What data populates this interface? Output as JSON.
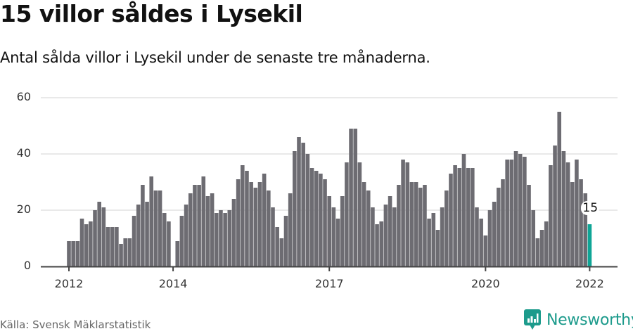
{
  "header": {
    "title": "15 villor såldes i Lysekil",
    "subtitle": "Antal sålda villor i Lysekil under de senaste tre månaderna."
  },
  "footer": {
    "source": "Källa: Svensk Mäklarstatistik",
    "brand": "Newsworthy",
    "brand_icon": "bar-chart-speech-bubble-icon"
  },
  "colors": {
    "bar": "#6d6c72",
    "highlight": "#0fa596",
    "grid": "#e2e2e2",
    "axis": "#444444",
    "brand": "#1d9b8c"
  },
  "chart_data": {
    "type": "bar",
    "title": "15 villor såldes i Lysekil",
    "subtitle": "Antal sålda villor i Lysekil under de senaste tre månaderna.",
    "xlabel": "",
    "ylabel": "",
    "ylim": [
      0,
      60
    ],
    "yticks": [
      0,
      20,
      40,
      60
    ],
    "xtick_labels": [
      "2012",
      "2014",
      "2017",
      "2020",
      "2022"
    ],
    "grid": true,
    "legend": "none",
    "start": "2012-01",
    "end": "2022-01",
    "frequency": "monthly",
    "highlight_last": true,
    "annotation": {
      "label": "15",
      "x": "2022-01"
    },
    "categories": [
      "2012-01",
      "2012-02",
      "2012-03",
      "2012-04",
      "2012-05",
      "2012-06",
      "2012-07",
      "2012-08",
      "2012-09",
      "2012-10",
      "2012-11",
      "2012-12",
      "2013-01",
      "2013-02",
      "2013-03",
      "2013-04",
      "2013-05",
      "2013-06",
      "2013-07",
      "2013-08",
      "2013-09",
      "2013-10",
      "2013-11",
      "2013-12",
      "2014-01",
      "2014-02",
      "2014-03",
      "2014-04",
      "2014-05",
      "2014-06",
      "2014-07",
      "2014-08",
      "2014-09",
      "2014-10",
      "2014-11",
      "2014-12",
      "2015-01",
      "2015-02",
      "2015-03",
      "2015-04",
      "2015-05",
      "2015-06",
      "2015-07",
      "2015-08",
      "2015-09",
      "2015-10",
      "2015-11",
      "2015-12",
      "2016-01",
      "2016-02",
      "2016-03",
      "2016-04",
      "2016-05",
      "2016-06",
      "2016-07",
      "2016-08",
      "2016-09",
      "2016-10",
      "2016-11",
      "2016-12",
      "2017-01",
      "2017-02",
      "2017-03",
      "2017-04",
      "2017-05",
      "2017-06",
      "2017-07",
      "2017-08",
      "2017-09",
      "2017-10",
      "2017-11",
      "2017-12",
      "2018-01",
      "2018-02",
      "2018-03",
      "2018-04",
      "2018-05",
      "2018-06",
      "2018-07",
      "2018-08",
      "2018-09",
      "2018-10",
      "2018-11",
      "2018-12",
      "2019-01",
      "2019-02",
      "2019-03",
      "2019-04",
      "2019-05",
      "2019-06",
      "2019-07",
      "2019-08",
      "2019-09",
      "2019-10",
      "2019-11",
      "2019-12",
      "2020-01",
      "2020-02",
      "2020-03",
      "2020-04",
      "2020-05",
      "2020-06",
      "2020-07",
      "2020-08",
      "2020-09",
      "2020-10",
      "2020-11",
      "2020-12",
      "2021-01",
      "2021-02",
      "2021-03",
      "2021-04",
      "2021-05",
      "2021-06",
      "2021-07",
      "2021-08",
      "2021-09",
      "2021-10",
      "2021-11",
      "2021-12",
      "2022-01"
    ],
    "values": [
      9,
      9,
      9,
      17,
      15,
      16,
      20,
      23,
      21,
      14,
      14,
      14,
      8,
      10,
      10,
      18,
      22,
      29,
      23,
      32,
      27,
      27,
      19,
      16,
      0,
      9,
      18,
      22,
      26,
      29,
      29,
      32,
      25,
      26,
      19,
      20,
      19,
      20,
      24,
      31,
      36,
      34,
      30,
      28,
      30,
      33,
      27,
      21,
      14,
      10,
      18,
      26,
      41,
      46,
      44,
      40,
      35,
      34,
      33,
      31,
      25,
      21,
      17,
      25,
      37,
      49,
      49,
      37,
      30,
      27,
      21,
      15,
      16,
      22,
      25,
      21,
      29,
      38,
      37,
      30,
      30,
      28,
      29,
      17,
      19,
      13,
      21,
      27,
      33,
      36,
      35,
      40,
      35,
      35,
      21,
      17,
      11,
      20,
      23,
      28,
      31,
      38,
      38,
      41,
      40,
      39,
      29,
      20,
      10,
      13,
      16,
      36,
      43,
      55,
      41,
      37,
      30,
      38,
      31,
      26,
      15
    ]
  }
}
